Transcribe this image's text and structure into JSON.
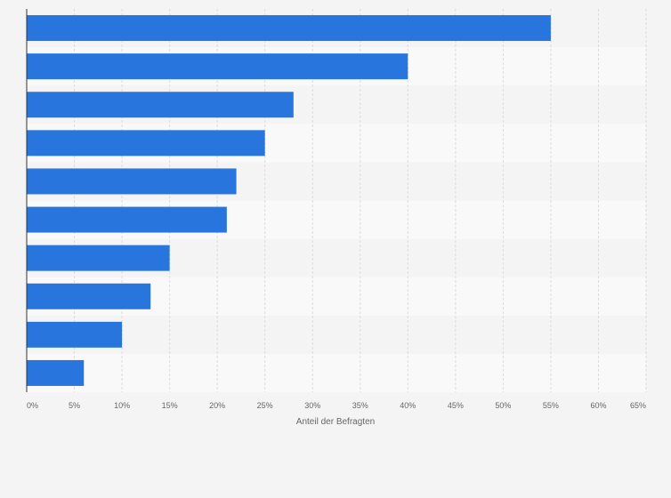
{
  "chart_data": {
    "type": "bar",
    "orientation": "horizontal",
    "title": "",
    "categories": [
      "",
      "",
      "",
      "",
      "",
      "",
      "",
      "",
      "",
      ""
    ],
    "values": [
      55,
      40,
      28,
      25,
      22,
      21,
      15,
      13,
      10,
      6
    ],
    "xlabel": "Anteil der Befragten",
    "ylabel": "",
    "xlim": [
      0,
      65
    ],
    "x_ticks": [
      0,
      5,
      10,
      15,
      20,
      25,
      30,
      35,
      40,
      45,
      50,
      55,
      60,
      65
    ],
    "x_tick_labels": [
      "0%",
      "5%",
      "10%",
      "15%",
      "20%",
      "25%",
      "30%",
      "35%",
      "40%",
      "45%",
      "50%",
      "55%",
      "60%",
      "65%"
    ],
    "grid": true,
    "legend": "none",
    "colors": {
      "bar": "#2876dd",
      "background": "#f4f4f4",
      "band_light": "#f9f9f9",
      "band_dark": "#f4f4f4",
      "grid": "#dcdcdc",
      "axis": "#333333",
      "tick_text": "#666666"
    }
  }
}
